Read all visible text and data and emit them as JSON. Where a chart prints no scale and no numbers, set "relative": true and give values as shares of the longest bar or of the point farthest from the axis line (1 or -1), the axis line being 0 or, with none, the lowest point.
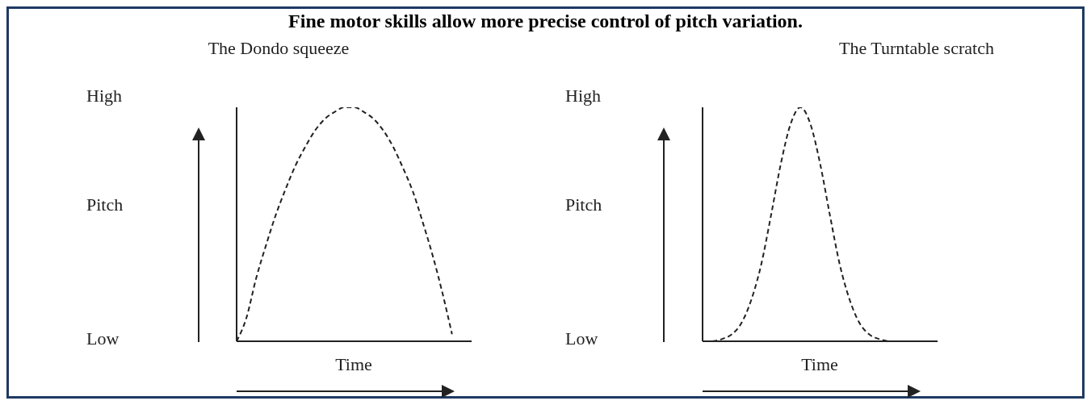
{
  "chart_data": [
    {
      "type": "line",
      "title": "Fine motor skills allow more precise control of pitch variation.",
      "subtitle": "The Dondo squeeze",
      "xlabel": "Time",
      "ylabel": "Pitch",
      "annotations": [
        "High",
        "Low"
      ],
      "relative": true,
      "line_style": "dashed",
      "marker": "none",
      "categories": [
        null,
        null,
        null,
        null,
        null,
        null,
        null,
        null,
        null,
        null,
        null,
        null,
        null,
        null,
        null,
        null,
        null,
        null,
        null,
        null,
        null,
        null,
        null,
        null,
        null
      ],
      "series": [
        {
          "color": "#222222",
          "values": [
            0,
            0.1,
            0.27,
            0.41,
            0.54,
            0.65,
            0.75,
            0.83,
            0.9,
            0.95,
            0.98,
            1,
            1,
            0.98,
            0.95,
            0.9,
            0.83,
            0.74,
            0.64,
            0.51,
            0.37,
            0.21,
            0.03,
            null,
            null
          ]
        }
      ]
    },
    {
      "type": "line",
      "subtitle": "The Turntable scratch",
      "xlabel": "Time",
      "ylabel": "Pitch",
      "annotations": [
        "High",
        "Low"
      ],
      "relative": true,
      "line_style": "dashed",
      "marker": "none",
      "categories": [
        null,
        null,
        null,
        null,
        null,
        null,
        null,
        null,
        null,
        null,
        null,
        null,
        null,
        null,
        null,
        null,
        null,
        null,
        null,
        null,
        null,
        null,
        null,
        null,
        null
      ],
      "series": [
        {
          "color": "#222222",
          "values": [
            null,
            0,
            0.01,
            0.03,
            0.08,
            0.18,
            0.33,
            0.54,
            0.76,
            0.93,
            1,
            0.93,
            0.76,
            0.54,
            0.33,
            0.18,
            0.08,
            0.03,
            0.01,
            0,
            null,
            null,
            null,
            null,
            null
          ]
        }
      ]
    }
  ]
}
